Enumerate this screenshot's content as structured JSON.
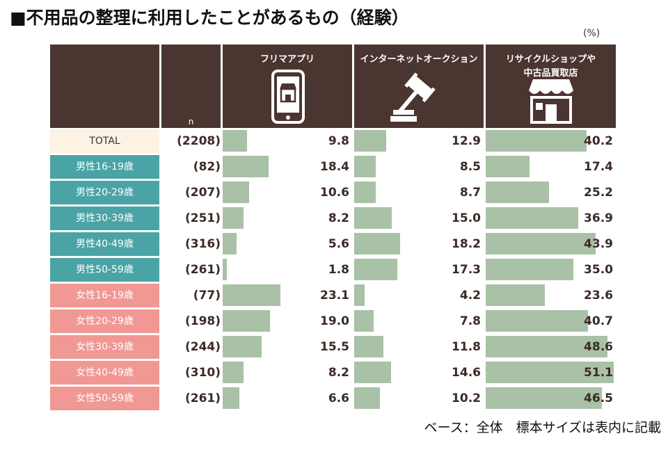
{
  "title": "■不用品の整理に利用したことがあるもの（経験）",
  "unit": "(%)",
  "footnote": "ベース：全体　標本サイズは表内に記載",
  "header": {
    "n_label": "n",
    "columns": [
      {
        "label": "フリマアプリ",
        "icon": "smartphone-shop-icon"
      },
      {
        "label": "インターネットオークション",
        "icon": "gavel-icon"
      },
      {
        "label": "リサイクルショップや\n中古品買取店",
        "icon": "storefront-icon"
      }
    ]
  },
  "colors": {
    "header_bg": "#4b3530",
    "total_bg": "#fdf2e3",
    "male_bg": "#4aa4a6",
    "female_bg": "#f19894",
    "bar": "#a9c1a6"
  },
  "rows": [
    {
      "label": "TOTAL",
      "group": "total",
      "n": "(2208)"
    },
    {
      "label": "男性16-19歳",
      "group": "male",
      "n": "(82)"
    },
    {
      "label": "男性20-29歳",
      "group": "male",
      "n": "(207)"
    },
    {
      "label": "男性30-39歳",
      "group": "male",
      "n": "(251)"
    },
    {
      "label": "男性40-49歳",
      "group": "male",
      "n": "(316)"
    },
    {
      "label": "男性50-59歳",
      "group": "male",
      "n": "(261)"
    },
    {
      "label": "女性16-19歳",
      "group": "female",
      "n": "(77)"
    },
    {
      "label": "女性20-29歳",
      "group": "female",
      "n": "(198)"
    },
    {
      "label": "女性30-39歳",
      "group": "female",
      "n": "(244)"
    },
    {
      "label": "女性40-49歳",
      "group": "female",
      "n": "(310)"
    },
    {
      "label": "女性50-59歳",
      "group": "female",
      "n": "(261)"
    }
  ],
  "chart_data": {
    "type": "bar",
    "categories": [
      "TOTAL",
      "男性16-19歳",
      "男性20-29歳",
      "男性30-39歳",
      "男性40-49歳",
      "男性50-59歳",
      "女性16-19歳",
      "女性20-29歳",
      "女性30-39歳",
      "女性40-49歳",
      "女性50-59歳"
    ],
    "series": [
      {
        "name": "フリマアプリ",
        "values": [
          9.8,
          18.4,
          10.6,
          8.2,
          5.6,
          1.8,
          23.1,
          19.0,
          15.5,
          8.2,
          6.6
        ],
        "labels": [
          "9.8",
          "18.4",
          "10.6",
          "8.2",
          "5.6",
          "1.8",
          "23.1",
          "19.0",
          "15.5",
          "8.2",
          "6.6"
        ]
      },
      {
        "name": "インターネットオークション",
        "values": [
          12.9,
          8.5,
          8.7,
          15.0,
          18.2,
          17.3,
          4.2,
          7.8,
          11.8,
          14.6,
          10.2
        ],
        "labels": [
          "12.9",
          "8.5",
          "8.7",
          "15.0",
          "18.2",
          "17.3",
          "4.2",
          "7.8",
          "11.8",
          "14.6",
          "10.2"
        ]
      },
      {
        "name": "リサイクルショップや中古品買取店",
        "values": [
          40.2,
          17.4,
          25.2,
          36.9,
          43.9,
          35.0,
          23.6,
          40.7,
          48.6,
          51.1,
          46.5
        ],
        "labels": [
          "40.2",
          "17.4",
          "25.2",
          "36.9",
          "43.9",
          "35.0",
          "23.6",
          "40.7",
          "48.6",
          "51.1",
          "46.5"
        ]
      }
    ],
    "unit": "(%)"
  }
}
